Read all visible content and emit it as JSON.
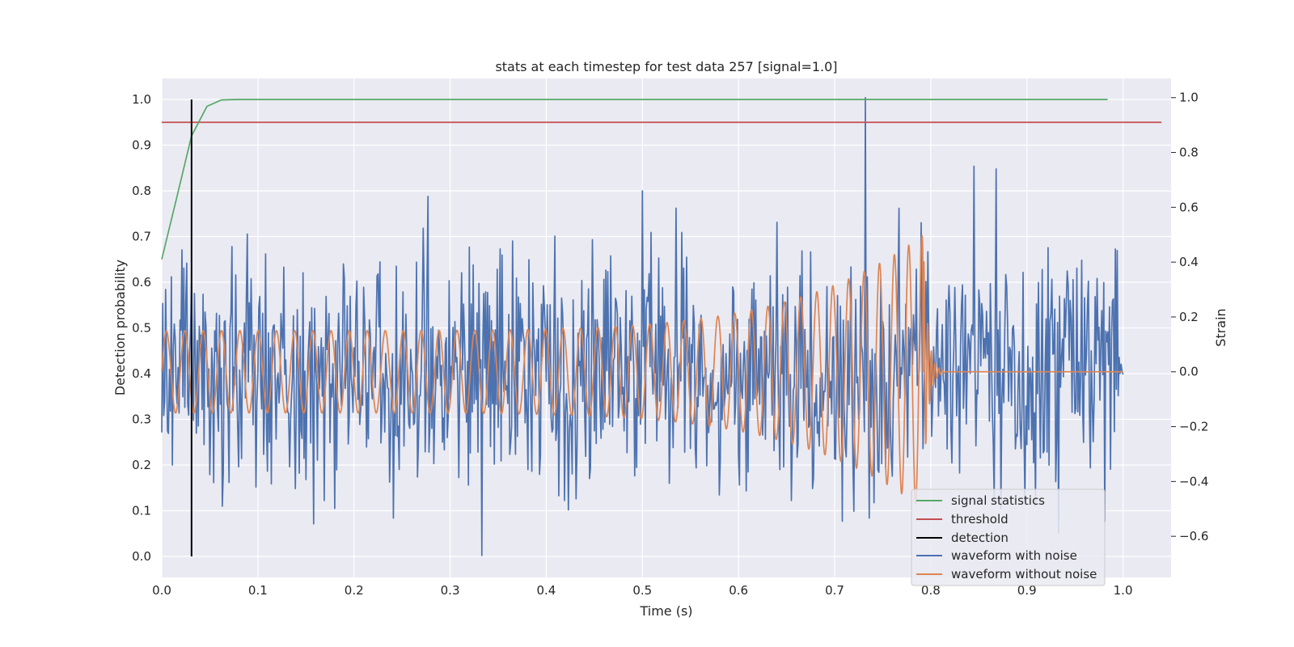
{
  "chart_data": {
    "type": "line",
    "title": "stats at each timestep for test data 257 [signal=1.0]",
    "xlabel": "Time (s)",
    "ylabel_left": "Detection probability",
    "ylabel_right": "Strain",
    "xlim": [
      0.0,
      1.05
    ],
    "ylim_left": [
      -0.046,
      1.046
    ],
    "ylim_right": [
      -0.75,
      1.07
    ],
    "x_ticks": [
      "0.0",
      "0.1",
      "0.2",
      "0.3",
      "0.4",
      "0.5",
      "0.6",
      "0.7",
      "0.8",
      "0.9",
      "1.0"
    ],
    "y_ticks_left": [
      "0.0",
      "0.1",
      "0.2",
      "0.3",
      "0.4",
      "0.5",
      "0.6",
      "0.7",
      "0.8",
      "0.9",
      "1.0"
    ],
    "y_ticks_right": [
      "−0.6",
      "−0.4",
      "−0.2",
      "0.0",
      "0.2",
      "0.4",
      "0.6",
      "0.8",
      "1.0"
    ],
    "grid": true,
    "legend_position": "lower-right",
    "signal_statistics": {
      "name": "signal statistics",
      "color": "#55a868",
      "x": [
        0.0,
        0.015,
        0.031,
        0.047,
        0.062,
        0.078,
        0.2,
        0.4,
        0.6,
        0.8,
        0.984
      ],
      "y": [
        0.65,
        0.78,
        0.92,
        0.985,
        0.999,
        1.0,
        1.0,
        1.0,
        1.0,
        1.0,
        1.0
      ]
    },
    "threshold": {
      "name": "threshold",
      "color": "#c44e52",
      "value": 0.95,
      "x_range": [
        0.0,
        1.04
      ]
    },
    "detection": {
      "name": "detection",
      "color": "#000000",
      "x": 0.031,
      "y_range": [
        0.0,
        1.0
      ]
    },
    "waveform_with_noise": {
      "name": "waveform with noise",
      "color": "#4c72b0",
      "duration": 1.0,
      "amplitude_range": [
        -0.67,
        1.0
      ],
      "peaks": [
        {
          "x": 0.732,
          "y": 1.0
        },
        {
          "x": 0.845,
          "y": 0.75
        },
        {
          "x": 0.868,
          "y": 0.74
        },
        {
          "x": 0.277,
          "y": 0.64
        },
        {
          "x": 0.5,
          "y": 0.66
        },
        {
          "x": 0.333,
          "y": -0.67
        }
      ]
    },
    "waveform_without_noise": {
      "name": "waveform without noise",
      "color": "#dd8452",
      "x_start": 0.0,
      "merger_x": 0.792,
      "x_end": 1.0,
      "amplitude_start": 0.15,
      "peak_amplitude": 0.5,
      "ringdown_end": 0.815
    }
  }
}
